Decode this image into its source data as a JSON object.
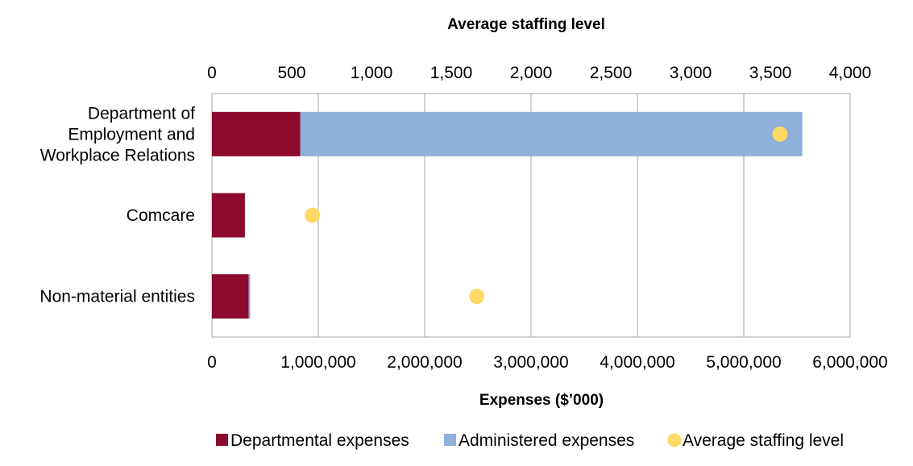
{
  "chart_data": {
    "type": "bar",
    "orientation": "horizontal",
    "stacked": true,
    "categories": [
      [
        "Department of",
        "Employment and",
        "Workplace Relations"
      ],
      [
        "Comcare"
      ],
      [
        "Non-material entities"
      ]
    ],
    "series": [
      {
        "name": "Departmental expenses",
        "color": "#8B0A2E",
        "values": [
          830000,
          310000,
          345000
        ]
      },
      {
        "name": "Administered expenses",
        "color": "#8EB0DA",
        "values": [
          4720000,
          0,
          15000
        ]
      }
    ],
    "staffing": {
      "name": "Average staffing level",
      "color": "#FFD966",
      "values": [
        3560,
        630,
        1660
      ]
    },
    "xlabel": "Expenses ($’000)",
    "x2label": "Average staffing level",
    "xlim": [
      0,
      6000000
    ],
    "x2lim": [
      0,
      4000
    ],
    "xticks": [
      "0",
      "1,000,000",
      "2,000,000",
      "3,000,000",
      "4,000,000",
      "5,000,000",
      "6,000,000"
    ],
    "x2ticks": [
      "0",
      "500",
      "1,000",
      "1,500",
      "2,000",
      "2,500",
      "3,000",
      "3,500",
      "4,000"
    ],
    "grid": true,
    "legend_position": "bottom"
  }
}
